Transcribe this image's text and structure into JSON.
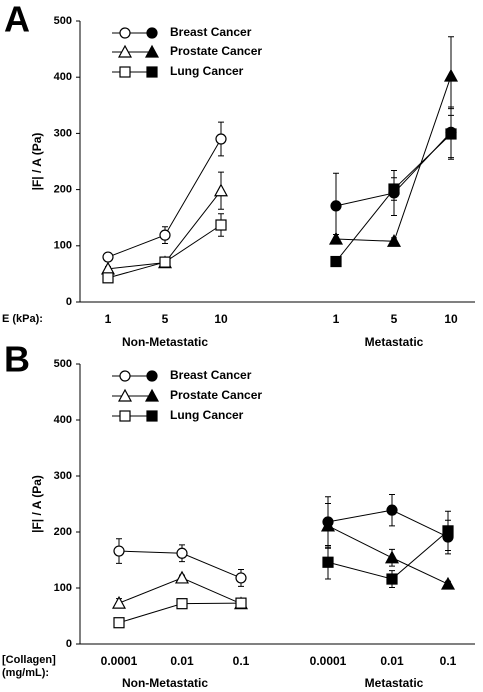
{
  "chart_data": [
    {
      "type": "line",
      "panel_label": "A",
      "y_label": "|F| / A (Pa)",
      "x_label": "E (kPa):",
      "categories": [
        "1",
        "5",
        "10",
        "1",
        "5",
        "10"
      ],
      "groups": [
        "Non-Metastatic",
        "Metastatic"
      ],
      "ylim": [
        0,
        500
      ],
      "yticks": [
        0,
        100,
        200,
        300,
        400,
        500
      ],
      "series": [
        {
          "name": "Breast Cancer",
          "marker": "circle",
          "color": "#000000",
          "values": [
            80,
            119,
            290,
            171,
            194,
            302
          ],
          "errors": [
            4,
            15,
            30,
            58,
            40,
            45
          ]
        },
        {
          "name": "Prostate Cancer",
          "marker": "triangle",
          "color": "#000000",
          "values": [
            59,
            70,
            198,
            112,
            108,
            402
          ],
          "errors": [
            4,
            8,
            33,
            8,
            6,
            70
          ]
        },
        {
          "name": "Lung Cancer",
          "marker": "square",
          "color": "#000000",
          "values": [
            43,
            71,
            137,
            72,
            201,
            299
          ],
          "errors": [
            4,
            8,
            20,
            4,
            20,
            45
          ]
        }
      ]
    },
    {
      "type": "line",
      "panel_label": "B",
      "y_label": "|F| / A (Pa)",
      "x_label": "[Collagen] (mg/mL):",
      "categories": [
        "0.0001",
        "0.01",
        "0.1",
        "0.0001",
        "0.01",
        "0.1"
      ],
      "groups": [
        "Non-Metastatic",
        "Metastatic"
      ],
      "ylim": [
        0,
        500
      ],
      "yticks": [
        0,
        100,
        200,
        300,
        400,
        500
      ],
      "series": [
        {
          "name": "Breast Cancer",
          "marker": "circle",
          "color": "#000000",
          "values": [
            166,
            162,
            118,
            218,
            239,
            191
          ],
          "errors": [
            22,
            15,
            15,
            45,
            28,
            30
          ]
        },
        {
          "name": "Prostate Cancer",
          "marker": "triangle",
          "color": "#000000",
          "values": [
            73,
            118,
            72,
            211,
            154,
            107
          ],
          "errors": [
            8,
            5,
            5,
            40,
            15,
            5
          ]
        },
        {
          "name": "Lung Cancer",
          "marker": "square",
          "color": "#000000",
          "values": [
            38,
            72,
            73,
            146,
            116,
            202
          ],
          "errors": [
            4,
            8,
            8,
            30,
            15,
            35
          ]
        }
      ]
    }
  ]
}
